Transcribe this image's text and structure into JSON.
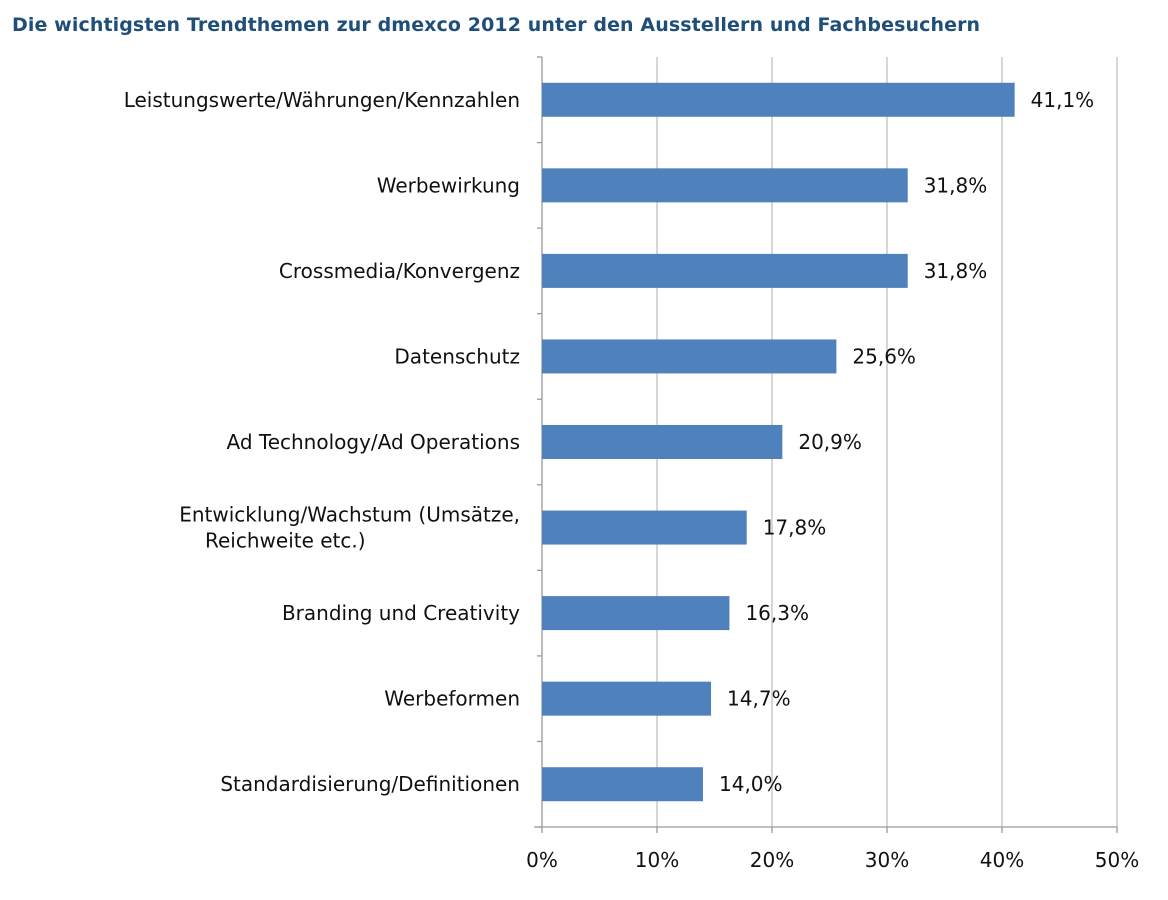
{
  "chart_data": {
    "type": "bar",
    "orientation": "horizontal",
    "title": "Die wichtigsten Trendthemen zur dmexco 2012 unter den Ausstellern und Fachbesuchern",
    "categories": [
      "Leistungswerte/Währungen/Kennzahlen",
      "Werbewirkung",
      "Crossmedia/Konvergenz",
      "Datenschutz",
      "Ad Technology/Ad Operations",
      "Entwicklung/Wachstum (Umsätze,\nReichweite etc.)",
      "Branding und Creativity",
      "Werbeformen",
      "Standardisierung/Definitionen"
    ],
    "values": [
      41.1,
      31.8,
      31.8,
      25.6,
      20.9,
      17.8,
      16.3,
      14.7,
      14.0
    ],
    "data_labels": [
      "41,1%",
      "31,8%",
      "31,8%",
      "25,6%",
      "20,9%",
      "17,8%",
      "16,3%",
      "14,7%",
      "14,0%"
    ],
    "xlim": [
      0,
      50
    ],
    "x_ticks": [
      "0%",
      "10%",
      "20%",
      "30%",
      "40%",
      "50%"
    ],
    "grid": "vertical",
    "xlabel": "",
    "ylabel": "",
    "colors": {
      "bar": "#4f81bd",
      "title": "#1f4e79",
      "grid": "#bfbfbf"
    }
  }
}
